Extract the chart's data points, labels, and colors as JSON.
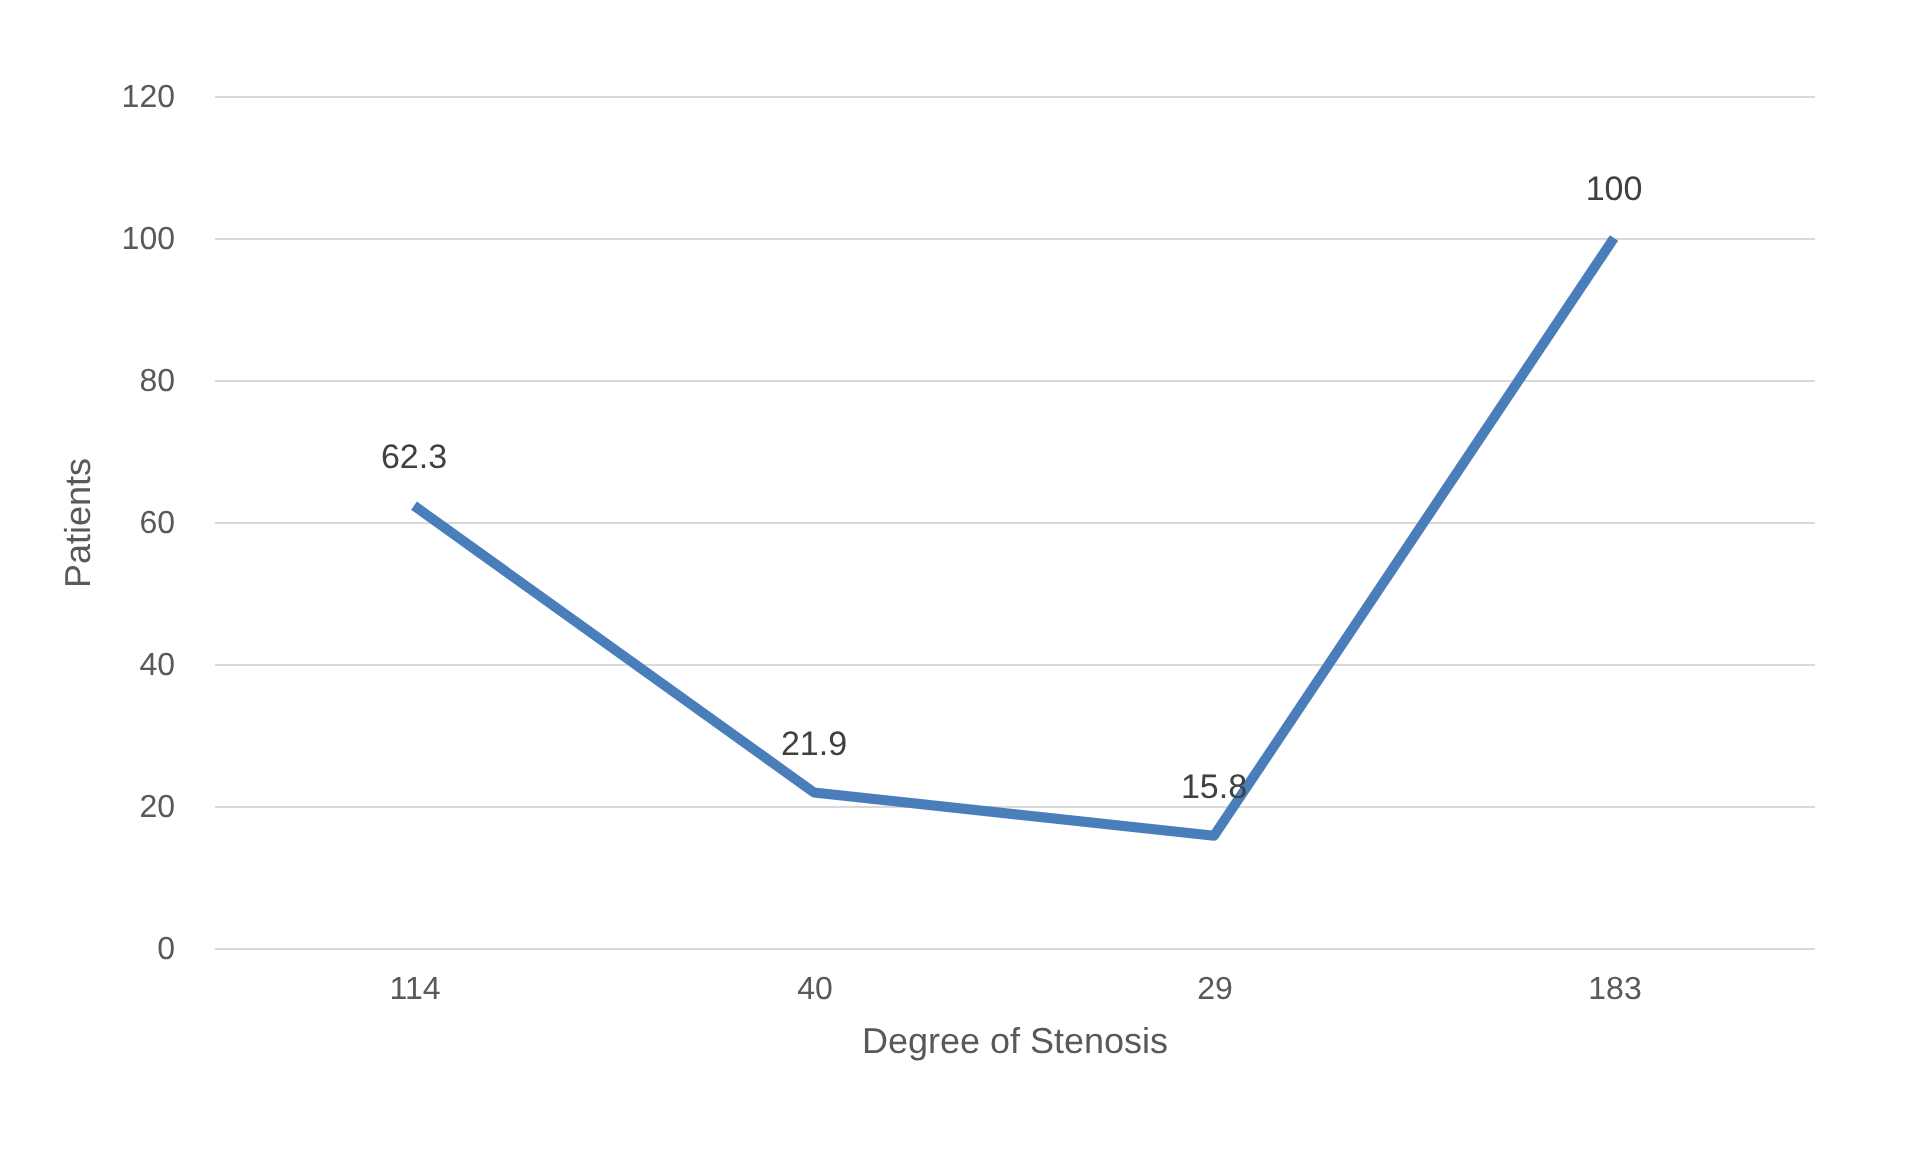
{
  "chart_data": {
    "type": "line",
    "xlabel": "Degree of Stenosis",
    "ylabel": "Patients",
    "categories": [
      "114",
      "40",
      "29",
      "183"
    ],
    "series": [
      {
        "color": "#4a7ebb",
        "values": [
          62.3,
          21.9,
          15.8,
          100
        ]
      }
    ],
    "ylim": [
      0,
      120
    ],
    "yticks": [
      0,
      20,
      40,
      60,
      80,
      100,
      120
    ],
    "grid": "y",
    "data_labels": true,
    "marker": "none",
    "line_style": "solid"
  }
}
